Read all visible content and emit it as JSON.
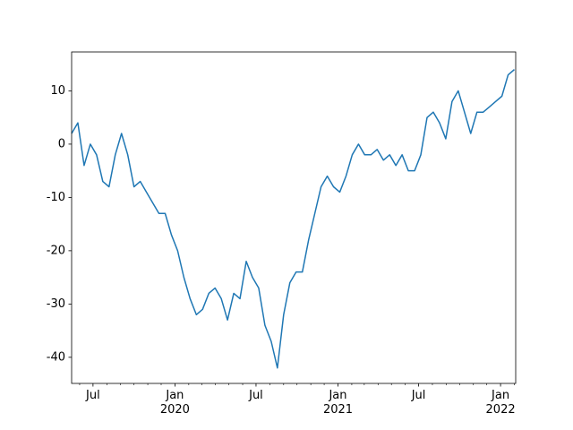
{
  "chart_data": {
    "type": "line",
    "color": "#1f77b4",
    "x": [
      "2019-05-14",
      "2019-05-28",
      "2019-06-11",
      "2019-06-25",
      "2019-07-09",
      "2019-07-23",
      "2019-08-06",
      "2019-08-20",
      "2019-09-03",
      "2019-09-17",
      "2019-10-01",
      "2019-10-15",
      "2019-10-29",
      "2019-11-12",
      "2019-11-26",
      "2019-12-10",
      "2019-12-24",
      "2020-01-07",
      "2020-01-21",
      "2020-02-04",
      "2020-02-18",
      "2020-03-03",
      "2020-03-17",
      "2020-03-31",
      "2020-04-14",
      "2020-04-28",
      "2020-05-12",
      "2020-05-26",
      "2020-06-09",
      "2020-06-23",
      "2020-07-07",
      "2020-07-21",
      "2020-08-04",
      "2020-08-18",
      "2020-09-01",
      "2020-09-15",
      "2020-09-29",
      "2020-10-13",
      "2020-10-27",
      "2020-11-10",
      "2020-11-24",
      "2020-12-08",
      "2020-12-22",
      "2021-01-05",
      "2021-01-19",
      "2021-02-02",
      "2021-02-16",
      "2021-03-02",
      "2021-03-16",
      "2021-03-30",
      "2021-04-13",
      "2021-04-27",
      "2021-05-11",
      "2021-05-25",
      "2021-06-08",
      "2021-06-22",
      "2021-07-06",
      "2021-07-20",
      "2021-08-03",
      "2021-08-17",
      "2021-08-31",
      "2021-09-14",
      "2021-09-28",
      "2021-10-12",
      "2021-10-26",
      "2021-11-09",
      "2021-11-23",
      "2021-12-07",
      "2021-12-21",
      "2022-01-04",
      "2022-01-18",
      "2022-02-01"
    ],
    "values": [
      2,
      4,
      -4,
      0,
      -2,
      -7,
      -8,
      -2,
      2,
      -2,
      -8,
      -7,
      -9,
      -11,
      -13,
      -13,
      -17,
      -20,
      -25,
      -29,
      -32,
      -31,
      -28,
      -27,
      -29,
      -33,
      -28,
      -29,
      -22,
      -25,
      -27,
      -34,
      -37,
      -42,
      -32,
      -26,
      -24,
      -24,
      -18,
      -13,
      -8,
      -6,
      -8,
      -9,
      -6,
      -2,
      0,
      -2,
      -2,
      -1,
      -3,
      -2,
      -4,
      -2,
      -5,
      -5,
      -2,
      5,
      6,
      4,
      1,
      8,
      10,
      6,
      2,
      6,
      6,
      7,
      8,
      9,
      13,
      14
    ],
    "xlim": [
      "2019-05-14",
      "2022-02-04"
    ],
    "xticks": [
      {
        "value": "2019-07-01",
        "label": "Jul"
      },
      {
        "value": "2020-01-01",
        "label": "Jan\n2020"
      },
      {
        "value": "2020-07-01",
        "label": "Jul"
      },
      {
        "value": "2021-01-01",
        "label": "Jan\n2021"
      },
      {
        "value": "2021-07-01",
        "label": "Jul"
      },
      {
        "value": "2022-01-01",
        "label": "Jan\n2022"
      }
    ],
    "xminorticks": [
      "2019-06-01",
      "2019-08-01",
      "2019-09-01",
      "2019-10-01",
      "2019-11-01",
      "2019-12-01",
      "2020-02-01",
      "2020-03-01",
      "2020-04-01",
      "2020-05-01",
      "2020-06-01",
      "2020-08-01",
      "2020-09-01",
      "2020-10-01",
      "2020-11-01",
      "2020-12-01",
      "2021-02-01",
      "2021-03-01",
      "2021-04-01",
      "2021-05-01",
      "2021-06-01",
      "2021-08-01",
      "2021-09-01",
      "2021-10-01",
      "2021-11-01",
      "2021-12-01",
      "2022-02-01"
    ],
    "ylim": [
      -44.9,
      17.3
    ],
    "yticks": [
      -40,
      -30,
      -20,
      -10,
      0,
      10
    ],
    "grid": false
  }
}
